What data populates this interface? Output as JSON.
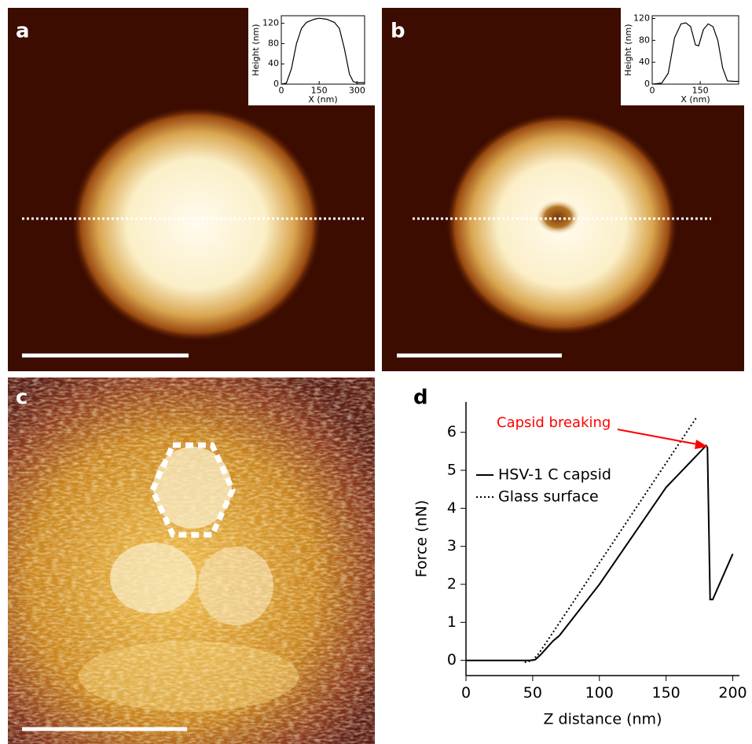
{
  "panels": {
    "labels": [
      "a",
      "b",
      "c",
      "d"
    ]
  },
  "chart_data": [
    {
      "type": "line",
      "x_label": "X (nm)",
      "y_label": "Height (nm)",
      "xlim": [
        0,
        330
      ],
      "ylim": [
        0,
        135
      ],
      "xticks": [
        0,
        150,
        300
      ],
      "yticks": [
        0,
        40,
        80,
        120
      ],
      "series": [
        {
          "color": "#000000",
          "style": "solid",
          "x": [
            0,
            20,
            40,
            60,
            80,
            100,
            130,
            150,
            180,
            210,
            230,
            250,
            270,
            285,
            300,
            330
          ],
          "values": [
            0,
            2,
            30,
            80,
            110,
            122,
            128,
            130,
            128,
            122,
            110,
            70,
            20,
            5,
            3,
            3
          ]
        }
      ]
    },
    {
      "type": "line",
      "x_label": "X (nm)",
      "y_label": "Height (nm)",
      "xlim": [
        0,
        270
      ],
      "ylim": [
        0,
        125
      ],
      "xticks": [
        0,
        150
      ],
      "yticks": [
        0,
        40,
        80,
        120
      ],
      "series": [
        {
          "color": "#000000",
          "style": "solid",
          "x": [
            0,
            30,
            50,
            70,
            90,
            105,
            120,
            135,
            145,
            160,
            175,
            190,
            205,
            220,
            235,
            255,
            270
          ],
          "values": [
            0,
            2,
            20,
            85,
            110,
            112,
            105,
            72,
            70,
            100,
            110,
            105,
            80,
            30,
            6,
            5,
            5
          ]
        }
      ]
    },
    {
      "type": "line",
      "x_label": "Z distance (nm)",
      "y_label": "Force (nN)",
      "xlim": [
        0,
        205
      ],
      "ylim": [
        -0.4,
        6.8
      ],
      "xticks": [
        0,
        50,
        100,
        150,
        200
      ],
      "yticks": [
        0,
        1,
        2,
        3,
        4,
        5,
        6
      ],
      "annotation": {
        "text": "Capsid breaking",
        "color": "#ff0000"
      },
      "series": [
        {
          "name": "HSV-1 C capsid",
          "color": "#000000",
          "style": "solid",
          "x": [
            0,
            48,
            52,
            56,
            65,
            70,
            100,
            150,
            180,
            181,
            183,
            185,
            200
          ],
          "values": [
            0,
            0,
            0.02,
            0.15,
            0.5,
            0.65,
            2.0,
            4.55,
            5.65,
            5.6,
            1.6,
            1.6,
            2.8
          ]
        },
        {
          "name": "Glass surface",
          "color": "#000000",
          "style": "dotted",
          "x": [
            44,
            50,
            55,
            173
          ],
          "values": [
            -0.05,
            0,
            0.2,
            6.4
          ]
        }
      ]
    }
  ]
}
